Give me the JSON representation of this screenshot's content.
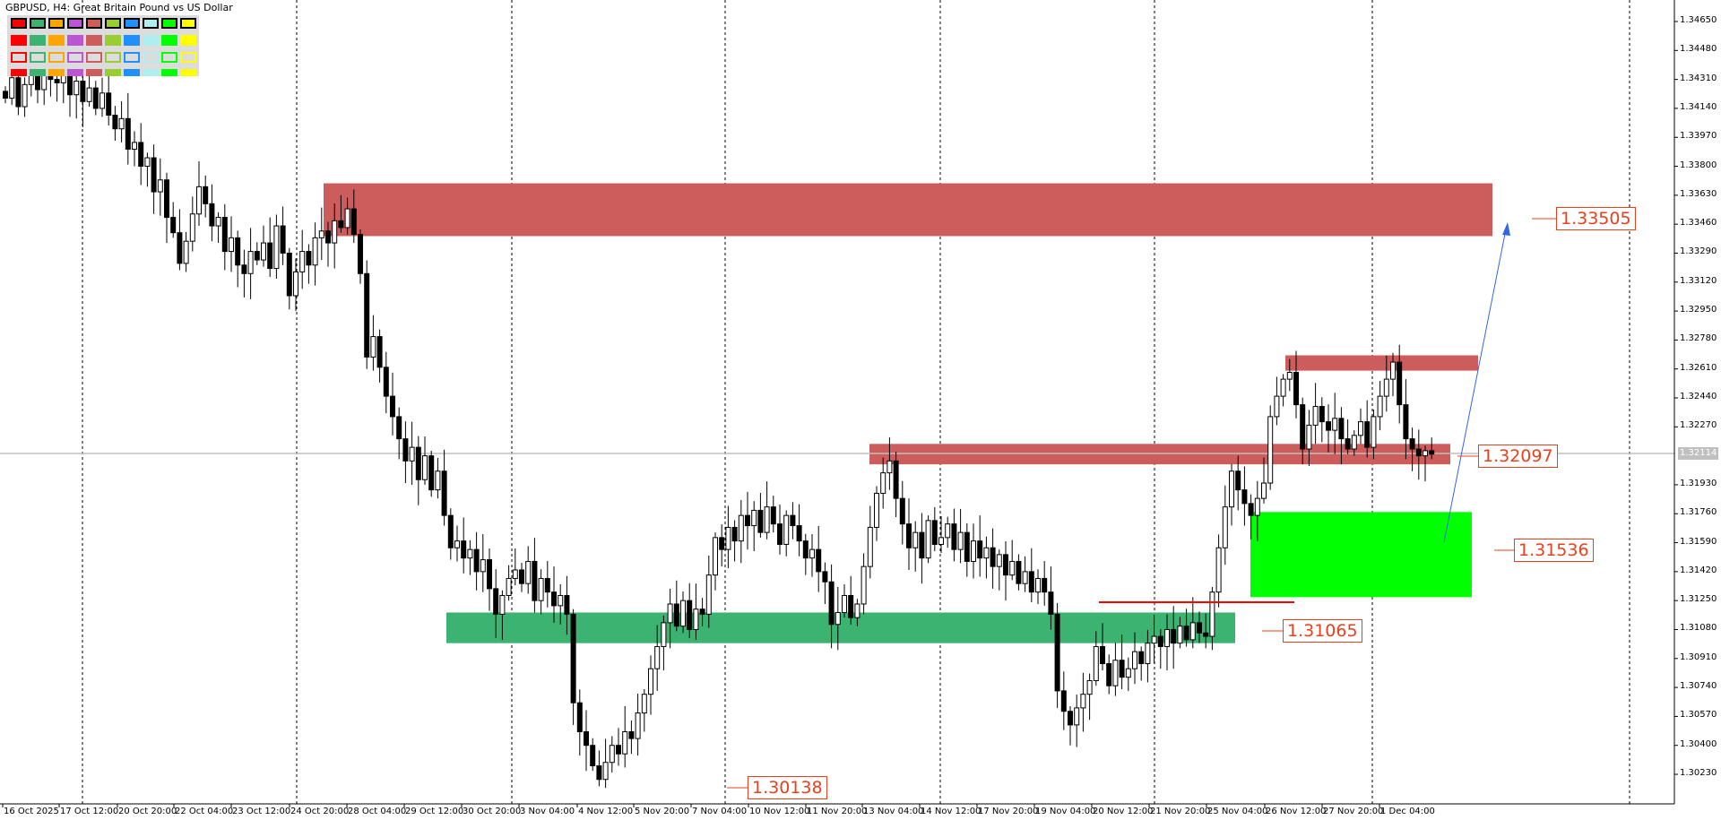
{
  "window": {
    "title": "GBPUSD, H4:  Great Britain Pound vs US Dollar"
  },
  "palette": {
    "colors": [
      "#ff0000",
      "#3cb371",
      "#ffa500",
      "#ba55d3",
      "#cd5c5c",
      "#9acd32",
      "#1e90ff",
      "#afeeee",
      "#00ff00",
      "#ffff00"
    ]
  },
  "chart_data": {
    "type": "candlestick",
    "symbol": "GBPUSD",
    "timeframe": "H4",
    "ylim": [
      1.3015,
      1.3475
    ],
    "y_ticks": [
      "1.34650",
      "1.34480",
      "1.34310",
      "1.34140",
      "1.33970",
      "1.33800",
      "1.33630",
      "1.33460",
      "1.33290",
      "1.33120",
      "1.32950",
      "1.32780",
      "1.32610",
      "1.32440",
      "1.32270",
      "1.31930",
      "1.31760",
      "1.31590",
      "1.31420",
      "1.31250",
      "1.31080",
      "1.30910",
      "1.30740",
      "1.30570",
      "1.30400",
      "1.30230"
    ],
    "x_ticks": [
      "16 Oct 2025",
      "17 Oct 12:00",
      "20 Oct 20:00",
      "22 Oct 04:00",
      "23 Oct 12:00",
      "24 Oct 20:00",
      "28 Oct 04:00",
      "29 Oct 12:00",
      "30 Oct 20:00",
      "3 Nov 04:00",
      "4 Nov 12:00",
      "5 Nov 20:00",
      "7 Nov 04:00",
      "10 Nov 12:00",
      "11 Nov 20:00",
      "13 Nov 04:00",
      "14 Nov 12:00",
      "17 Nov 20:00",
      "19 Nov 04:00",
      "20 Nov 12:00",
      "21 Nov 20:00",
      "25 Nov 04:00",
      "26 Nov 12:00",
      "27 Nov 20:00",
      "1 Dec 04:00"
    ],
    "current_price": "1.32114",
    "closes": [
      1.342,
      1.3432,
      1.3415,
      1.3428,
      1.3436,
      1.3425,
      1.344,
      1.3431,
      1.3429,
      1.3436,
      1.3422,
      1.343,
      1.3418,
      1.3426,
      1.3414,
      1.3423,
      1.341,
      1.3402,
      1.3408,
      1.339,
      1.3394,
      1.338,
      1.3385,
      1.3365,
      1.3372,
      1.335,
      1.3341,
      1.3323,
      1.3336,
      1.3352,
      1.3368,
      1.3358,
      1.3345,
      1.335,
      1.333,
      1.3338,
      1.3322,
      1.3317,
      1.333,
      1.3325,
      1.3335,
      1.332,
      1.3345,
      1.3329,
      1.3304,
      1.3318,
      1.333,
      1.3322,
      1.3338,
      1.3342,
      1.3335,
      1.3348,
      1.3344,
      1.3355,
      1.334,
      1.3317,
      1.3268,
      1.328,
      1.3262,
      1.3245,
      1.3233,
      1.322,
      1.3207,
      1.3215,
      1.3196,
      1.321,
      1.319,
      1.3201,
      1.3175,
      1.3156,
      1.316,
      1.315,
      1.3155,
      1.3142,
      1.3149,
      1.3132,
      1.3117,
      1.3128,
      1.3138,
      1.3143,
      1.3135,
      1.3148,
      1.3125,
      1.3138,
      1.313,
      1.3122,
      1.3128,
      1.3117,
      1.3065,
      1.3048,
      1.304,
      1.3028,
      1.302,
      1.303,
      1.304,
      1.3035,
      1.3048,
      1.3044,
      1.3059,
      1.307,
      1.3085,
      1.3098,
      1.3112,
      1.3123,
      1.311,
      1.3125,
      1.3108,
      1.312,
      1.3117,
      1.314,
      1.3162,
      1.3155,
      1.3168,
      1.316,
      1.3175,
      1.3169,
      1.3178,
      1.3165,
      1.318,
      1.317,
      1.3158,
      1.3175,
      1.3169,
      1.316,
      1.315,
      1.3155,
      1.3142,
      1.3136,
      1.3111,
      1.3118,
      1.3128,
      1.3115,
      1.3123,
      1.3145,
      1.3168,
      1.3188,
      1.32,
      1.3207,
      1.3185,
      1.317,
      1.3156,
      1.3165,
      1.315,
      1.3172,
      1.3158,
      1.3162,
      1.317,
      1.3155,
      1.3165,
      1.3148,
      1.316,
      1.315,
      1.3156,
      1.3145,
      1.3152,
      1.314,
      1.3148,
      1.3135,
      1.3142,
      1.313,
      1.3138,
      1.313,
      1.3117,
      1.3072,
      1.306,
      1.3052,
      1.3062,
      1.307,
      1.3078,
      1.3098,
      1.3088,
      1.3075,
      1.309,
      1.308,
      1.3085,
      1.3095,
      1.3088,
      1.31,
      1.3104,
      1.3098,
      1.3108,
      1.31,
      1.311,
      1.3102,
      1.3112,
      1.3106,
      1.3104,
      1.313,
      1.3156,
      1.318,
      1.3201,
      1.319,
      1.3182,
      1.3175,
      1.3185,
      1.3194,
      1.3233,
      1.3245,
      1.3255,
      1.3259,
      1.324,
      1.3214,
      1.3228,
      1.3239,
      1.323,
      1.3225,
      1.3232,
      1.322,
      1.3214,
      1.3222,
      1.323,
      1.3215,
      1.3233,
      1.3245,
      1.3255,
      1.3265,
      1.324,
      1.322,
      1.3214,
      1.321,
      1.3213,
      1.3211
    ],
    "zones": [
      {
        "type": "supply",
        "color": "#cd5c5c",
        "top": 1.337,
        "bottom": 1.3339
      },
      {
        "type": "supply",
        "color": "#cd5c5c",
        "top": 1.3269,
        "bottom": 1.326
      },
      {
        "type": "supply",
        "color": "#cd5c5c",
        "top": 1.3217,
        "bottom": 1.3205
      },
      {
        "type": "demand",
        "color": "#3cb371",
        "top": 1.3118,
        "bottom": 1.31
      },
      {
        "type": "target",
        "color": "#00ff00",
        "top": 1.3177,
        "bottom": 1.3127
      }
    ],
    "levels": [
      {
        "label": "1.33505"
      },
      {
        "label": "1.32097"
      },
      {
        "label": "1.31536"
      },
      {
        "label": "1.31065"
      },
      {
        "label": "1.30138"
      }
    ],
    "colors": {
      "bull_body": "#ffffff",
      "bear_body": "#000000",
      "label": "#e8401c",
      "arrow": "#3366e6",
      "price_line": "#c0c0c0"
    }
  }
}
